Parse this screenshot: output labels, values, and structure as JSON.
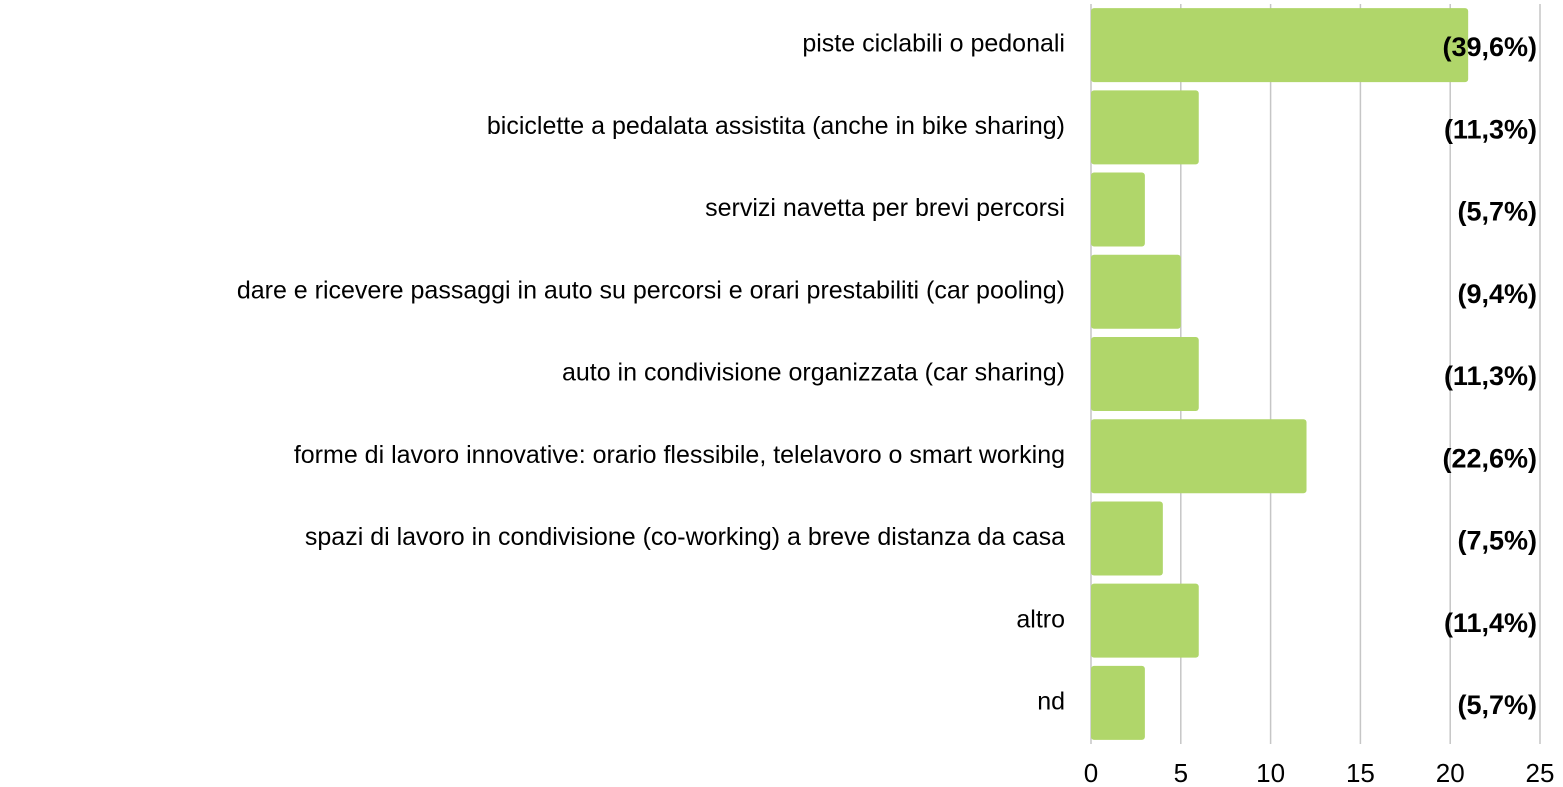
{
  "chart_data": {
    "type": "bar",
    "orientation": "horizontal",
    "categories": [
      "piste ciclabili o pedonali",
      "biciclette a pedalata assistita (anche in bike sharing)",
      "servizi navetta per brevi percorsi",
      "dare e ricevere passaggi in auto su percorsi e orari prestabiliti (car pooling)",
      "auto in condivisione organizzata (car sharing)",
      "forme di lavoro innovative: orario flessibile, telelavoro o smart working",
      "spazi di lavoro in condivisione (co-working) a breve distanza da casa",
      "altro",
      "nd"
    ],
    "values": [
      21,
      6,
      3,
      5,
      6,
      12,
      4,
      6,
      3
    ],
    "annotations": [
      "(39,6%)",
      "(11,3%)",
      "(5,7%)",
      "(9,4%)",
      "(11,3%)",
      "(22,6%)",
      "(7,5%)",
      "(11,4%)",
      "(5,7%)"
    ],
    "color": "#b0d66a",
    "xlim": [
      0,
      25
    ],
    "xticks": [
      0,
      5,
      10,
      15,
      20,
      25
    ],
    "grid": true
  }
}
